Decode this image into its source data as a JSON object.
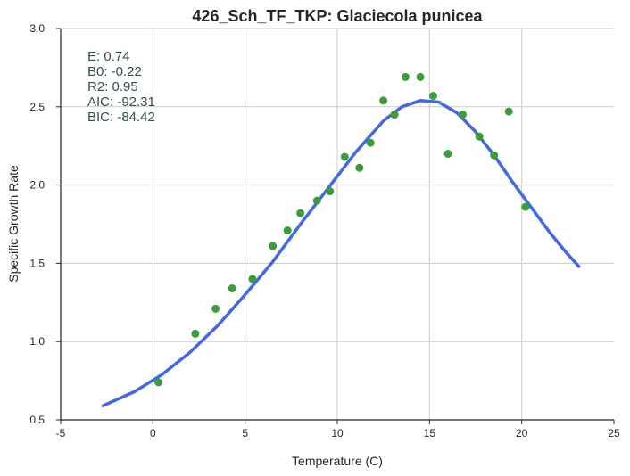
{
  "chart_data": {
    "type": "scatter",
    "title": "426_Sch_TF_TKP: Glaciecola punicea",
    "xlabel": "Temperature (C)",
    "ylabel": "Specific Growth Rate",
    "xlim": [
      -5,
      25
    ],
    "ylim": [
      0.5,
      3.0
    ],
    "xticks": [
      "-5",
      "0",
      "5",
      "10",
      "15",
      "20",
      "25"
    ],
    "yticks": [
      "0.5",
      "1.0",
      "1.5",
      "2.0",
      "2.5",
      "3.0"
    ],
    "grid": true,
    "stats_text": [
      "E:  0.74",
      "B0:  -0.22",
      "R2:  0.95",
      "AIC: -92.31",
      "BIC: -84.42"
    ],
    "series": [
      {
        "kind": "scatter",
        "color": "#3c9c3c",
        "x": [
          0.3,
          2.3,
          3.4,
          4.3,
          5.4,
          6.5,
          7.3,
          8.0,
          8.9,
          9.6,
          10.4,
          11.2,
          11.8,
          12.5,
          13.1,
          13.7,
          14.5,
          15.2,
          16.0,
          16.8,
          17.7,
          18.5,
          19.3,
          20.2
        ],
        "y": [
          0.74,
          1.05,
          1.21,
          1.34,
          1.4,
          1.61,
          1.71,
          1.82,
          1.9,
          1.96,
          2.18,
          2.11,
          2.27,
          2.54,
          2.45,
          2.69,
          2.69,
          2.57,
          2.2,
          2.45,
          2.31,
          2.19,
          2.47,
          1.86
        ]
      },
      {
        "kind": "line",
        "color": "#4169e1",
        "x": [
          -2.7,
          -1.0,
          0.5,
          2.0,
          3.5,
          5.0,
          6.5,
          8.0,
          9.5,
          11.0,
          12.5,
          13.5,
          14.5,
          15.5,
          16.5,
          17.5,
          18.5,
          19.5,
          20.5,
          21.5,
          22.4,
          23.1
        ],
        "y": [
          0.59,
          0.68,
          0.79,
          0.93,
          1.1,
          1.3,
          1.51,
          1.75,
          1.98,
          2.21,
          2.41,
          2.5,
          2.54,
          2.53,
          2.46,
          2.34,
          2.19,
          2.02,
          1.86,
          1.7,
          1.57,
          1.48
        ]
      }
    ]
  }
}
